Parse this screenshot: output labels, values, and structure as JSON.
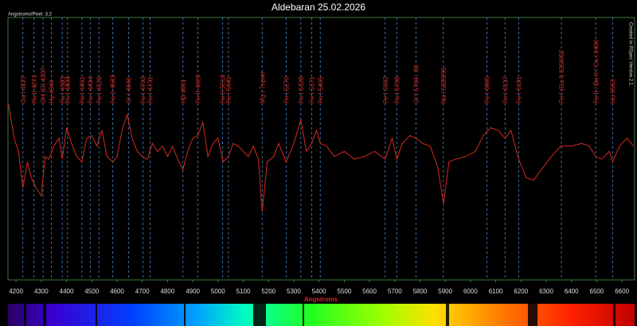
{
  "chart_data": {
    "type": "line",
    "title": "Aldebaran 25.02.2026",
    "note": "Angstroms/Pixel: 3.2",
    "credit": "Created in RSpec Version 2.1",
    "x_label": "Angstroms",
    "color": "#d42a1e",
    "xlim": [
      4168,
      6650
    ],
    "ylim": [
      0,
      100
    ],
    "xticks": [
      4200,
      4300,
      4400,
      4500,
      4600,
      4700,
      4800,
      4900,
      5000,
      5100,
      5200,
      5300,
      5400,
      5500,
      5600,
      5700,
      5800,
      5900,
      6000,
      6100,
      6200,
      6300,
      6400,
      6500,
      6600
    ],
    "x": [
      4170,
      4180,
      4195,
      4210,
      4227,
      4245,
      4260,
      4280,
      4300,
      4315,
      4330,
      4350,
      4370,
      4383,
      4400,
      4420,
      4440,
      4461,
      4480,
      4500,
      4520,
      4540,
      4560,
      4583,
      4600,
      4620,
      4640,
      4660,
      4680,
      4700,
      4720,
      4740,
      4760,
      4780,
      4800,
      4820,
      4840,
      4861,
      4880,
      4900,
      4920,
      4940,
      4960,
      4980,
      5000,
      5020,
      5041,
      5060,
      5080,
      5100,
      5120,
      5140,
      5160,
      5175,
      5195,
      5220,
      5240,
      5270,
      5300,
      5328,
      5350,
      5371,
      5390,
      5405,
      5430,
      5460,
      5500,
      5540,
      5580,
      5620,
      5662,
      5690,
      5708,
      5730,
      5760,
      5784,
      5810,
      5840,
      5870,
      5893,
      5915,
      5940,
      5980,
      6020,
      6050,
      6080,
      6110,
      6137,
      6160,
      6191,
      6220,
      6250,
      6280,
      6320,
      6358,
      6400,
      6440,
      6470,
      6496,
      6520,
      6550,
      6563,
      6590,
      6620,
      6645
    ],
    "values": [
      67,
      61,
      53,
      49,
      35,
      45,
      39,
      35,
      32,
      47,
      46,
      51,
      54,
      46,
      58,
      52,
      47,
      45,
      54,
      55,
      51,
      57,
      47,
      45,
      47,
      57,
      63,
      54,
      49,
      47,
      46,
      52,
      49,
      51,
      47,
      51,
      46,
      42,
      49,
      54,
      55,
      60,
      47,
      52,
      54,
      45,
      47,
      52,
      51,
      49,
      47,
      51,
      46,
      26,
      45,
      47,
      52,
      45,
      52,
      61,
      49,
      52,
      57,
      52,
      51,
      47,
      49,
      46,
      47,
      49,
      46,
      54,
      46,
      52,
      55,
      54,
      52,
      51,
      43,
      29,
      45,
      46,
      47,
      49,
      55,
      58,
      57,
      54,
      57,
      46,
      39,
      38,
      42,
      47,
      51,
      51,
      52,
      51,
      47,
      46,
      49,
      45,
      51,
      54,
      51
    ],
    "lines": [
      {
        "x": 4227,
        "label": "Ca I 4227"
      },
      {
        "x": 4271,
        "label": "Fe II 4271"
      },
      {
        "x": 4307,
        "label": "CH (G) 4307"
      },
      {
        "x": 4340,
        "label": "Hγ 4340"
      },
      {
        "x": 4383,
        "label": "Fe I 4383"
      },
      {
        "x": 4404,
        "label": "Fe I 4404"
      },
      {
        "x": 4461,
        "label": "Fe I 4461"
      },
      {
        "x": 4494,
        "label": "Fe I 4494"
      },
      {
        "x": 4528,
        "label": "Fe I 4528"
      },
      {
        "x": 4583,
        "label": "Fe II 4583"
      },
      {
        "x": 4646,
        "label": "Cr I 4646"
      },
      {
        "x": 4703,
        "label": "Fe I 4703"
      },
      {
        "x": 4731,
        "label": "Fe I 4731"
      },
      {
        "x": 4861,
        "label": "Hβ 4861"
      },
      {
        "x": 4920,
        "label": "Fe II 4920"
      },
      {
        "x": 5018,
        "label": "Fe II 5018"
      },
      {
        "x": 5041,
        "label": "Fe I 5041"
      },
      {
        "x": 5175,
        "label": "Mg I Triplet"
      },
      {
        "x": 5270,
        "label": "Fe I 5270"
      },
      {
        "x": 5328,
        "label": "Fe I 5328"
      },
      {
        "x": 5371,
        "label": "Fe I 5371"
      },
      {
        "x": 5405,
        "label": "Fe I 5405"
      },
      {
        "x": 5662,
        "label": "Fe I 5662"
      },
      {
        "x": 5708,
        "label": "Fe I 5708"
      },
      {
        "x": 5784,
        "label": "Cr I 5784 , 86"
      },
      {
        "x": 5892,
        "label": "Na I 5889/95"
      },
      {
        "x": 6065,
        "label": "Fe I 6065"
      },
      {
        "x": 6137,
        "label": "Fe I 6137"
      },
      {
        "x": 6191,
        "label": "Fe I 6191"
      },
      {
        "x": 6360,
        "label": "Fe I (Ca I) 6358/62"
      },
      {
        "x": 6496,
        "label": "Fe II / Ba II / Ca I 6496"
      },
      {
        "x": 6563,
        "label": "Hα 6563"
      }
    ]
  }
}
